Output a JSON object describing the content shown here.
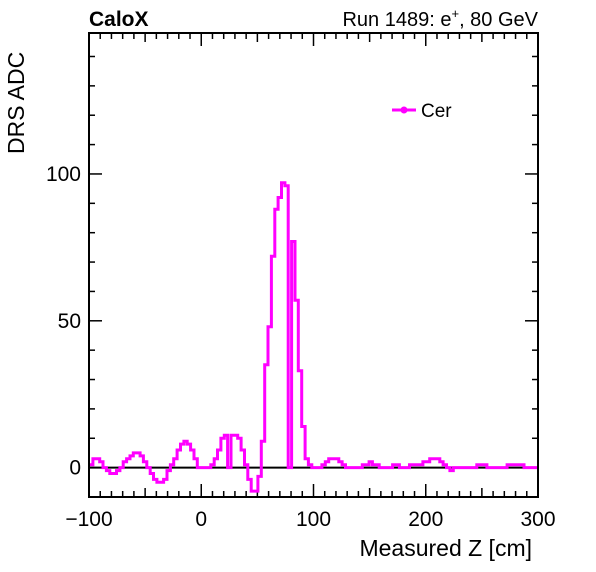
{
  "header": {
    "left_label": "CaloX",
    "right_prefix": "Run 1489: e",
    "right_sup": "+",
    "right_suffix": ", 80 GeV"
  },
  "chart_data": {
    "type": "line",
    "title": "",
    "xlabel": "Measured Z [cm]",
    "ylabel": "DRS ADC",
    "xlim": [
      -100,
      300
    ],
    "ylim": [
      -10,
      148
    ],
    "x_ticks": [
      -100,
      0,
      100,
      200,
      300
    ],
    "x_tick_labels": [
      "−100",
      "0",
      "100",
      "200",
      "300"
    ],
    "y_ticks": [
      0,
      50,
      100
    ],
    "y_tick_labels": [
      "0",
      "50",
      "100"
    ],
    "grid": false,
    "legend": {
      "position": "top-right",
      "entries": [
        "Cer"
      ]
    },
    "colors": {
      "series": "#ff00ff",
      "axis": "#000000",
      "zero_line": "#000000"
    },
    "zero_line": true,
    "step": true,
    "series": [
      {
        "name": "Cer",
        "x": [
          -98,
          -95,
          -92,
          -89,
          -86,
          -83,
          -80,
          -77,
          -74,
          -71,
          -68,
          -65,
          -62,
          -59,
          -56,
          -53,
          -50,
          -47,
          -44,
          -41,
          -38,
          -35,
          -32,
          -29,
          -26,
          -23,
          -20,
          -17,
          -14,
          -11,
          -8,
          -5,
          -2,
          1,
          4,
          7,
          10,
          13,
          16,
          19,
          22,
          25,
          28,
          31,
          34,
          37,
          40,
          43,
          46,
          49,
          52,
          55,
          58,
          61,
          64,
          67,
          70,
          73,
          76,
          79,
          82,
          85,
          88,
          91,
          94,
          97,
          100,
          103,
          106,
          109,
          112,
          115,
          118,
          121,
          124,
          127,
          130,
          133,
          136,
          139,
          142,
          145,
          148,
          151,
          154,
          157,
          160,
          163,
          166,
          169,
          172,
          175,
          178,
          181,
          184,
          187,
          190,
          193,
          196,
          199,
          202,
          205,
          208,
          211,
          214,
          217,
          220,
          223,
          226,
          229,
          232,
          235,
          238,
          241,
          244,
          247,
          250,
          253,
          256,
          259,
          262,
          265,
          268,
          271,
          274,
          277,
          280,
          283,
          286,
          289,
          292,
          295,
          298
        ],
        "values": [
          1,
          3,
          3,
          2,
          0,
          -1,
          -2,
          -2,
          -1,
          0,
          2,
          3,
          4,
          5,
          5,
          4,
          2,
          0,
          -2,
          -4,
          -5,
          -5,
          -4,
          -1,
          1,
          3,
          6,
          8,
          9,
          8,
          6,
          3,
          0,
          0,
          0,
          0,
          1,
          3,
          6,
          10,
          11,
          0,
          11,
          11,
          10,
          6,
          1,
          -4,
          -8,
          -8,
          -3,
          9,
          35,
          48,
          72,
          88,
          92,
          97,
          96,
          0,
          77,
          57,
          33,
          14,
          3,
          1,
          0,
          0,
          0,
          1,
          2,
          3,
          3,
          3,
          2,
          1,
          0,
          0,
          0,
          0,
          0,
          1,
          1,
          2,
          1,
          1,
          0,
          0,
          0,
          0,
          1,
          1,
          0,
          0,
          0,
          1,
          1,
          1,
          1,
          2,
          2,
          3,
          3,
          3,
          2,
          1,
          0,
          -1,
          0,
          0,
          0,
          0,
          0,
          0,
          0,
          1,
          1,
          1,
          0,
          0,
          0,
          0,
          0,
          0,
          1,
          1,
          1,
          1,
          1,
          0,
          0,
          0,
          0
        ]
      }
    ]
  }
}
